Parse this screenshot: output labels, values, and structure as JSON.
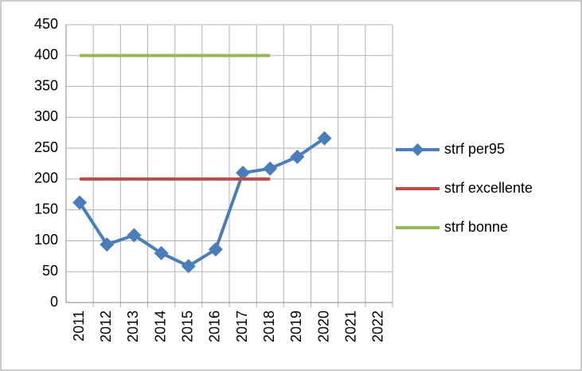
{
  "chart_data": {
    "type": "line",
    "categories": [
      "2011",
      "2012",
      "2013",
      "2014",
      "2015",
      "2016",
      "2017",
      "2018",
      "2019",
      "2020",
      "2021",
      "2022"
    ],
    "series": [
      {
        "name": "strf per95",
        "color": "#4a7ebb",
        "marker": "diamond",
        "values": [
          162,
          94,
          109,
          80,
          59,
          86,
          210,
          217,
          236,
          266,
          null,
          null
        ]
      },
      {
        "name": "strf excellente",
        "color": "#be4b48",
        "values": [
          200,
          200,
          200,
          200,
          200,
          200,
          200,
          200,
          null,
          null,
          null,
          null
        ]
      },
      {
        "name": "strf bonne",
        "color": "#98b954",
        "values": [
          400,
          400,
          400,
          400,
          400,
          400,
          400,
          400,
          null,
          null,
          null,
          null
        ]
      }
    ],
    "ylim": [
      0,
      450
    ],
    "yticks": [
      0,
      50,
      100,
      150,
      200,
      250,
      300,
      350,
      400,
      450
    ],
    "grid": true,
    "legend": "right"
  }
}
